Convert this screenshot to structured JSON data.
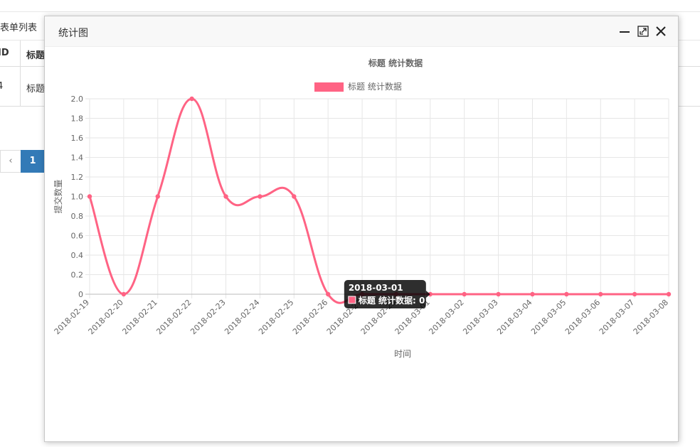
{
  "background": {
    "section_title": "表单列表",
    "table": {
      "headers": [
        "ID",
        "标题"
      ],
      "rows": [
        [
          "4",
          "标题"
        ]
      ]
    },
    "pagination": {
      "prev_label": "‹",
      "current_page": "1"
    }
  },
  "modal": {
    "title": "统计图",
    "controls": {
      "minimize": "minimize-icon",
      "maximize": "maximize-icon",
      "close": "close-icon"
    }
  },
  "colors": {
    "series": "#ff6384",
    "accent": "#337ab7"
  },
  "chart_data": {
    "type": "line",
    "title": "标题 统计数据",
    "xlabel": "时间",
    "ylabel": "提交数量",
    "ylim": [
      0,
      2.0
    ],
    "yticks": [
      "0",
      "0.2",
      "0.4",
      "0.6",
      "0.8",
      "1.0",
      "1.2",
      "1.4",
      "1.6",
      "1.8",
      "2.0"
    ],
    "categories": [
      "2018-02-19",
      "2018-02-20",
      "2018-02-21",
      "2018-02-22",
      "2018-02-23",
      "2018-02-24",
      "2018-02-25",
      "2018-02-26",
      "2018-02-27",
      "2018-02-28",
      "2018-03-01",
      "2018-03-02",
      "2018-03-03",
      "2018-03-04",
      "2018-03-05",
      "2018-03-06",
      "2018-03-07",
      "2018-03-08"
    ],
    "series": [
      {
        "name": "标题 统计数据",
        "color": "#ff6384",
        "values": [
          1,
          0,
          1,
          2,
          1,
          1,
          1,
          0,
          0,
          0,
          0,
          0,
          0,
          0,
          0,
          0,
          0,
          0
        ]
      }
    ],
    "legend_position": "top",
    "grid": true,
    "tooltip": {
      "title": "2018-03-01",
      "label": "标题 统计数据: 0"
    }
  }
}
